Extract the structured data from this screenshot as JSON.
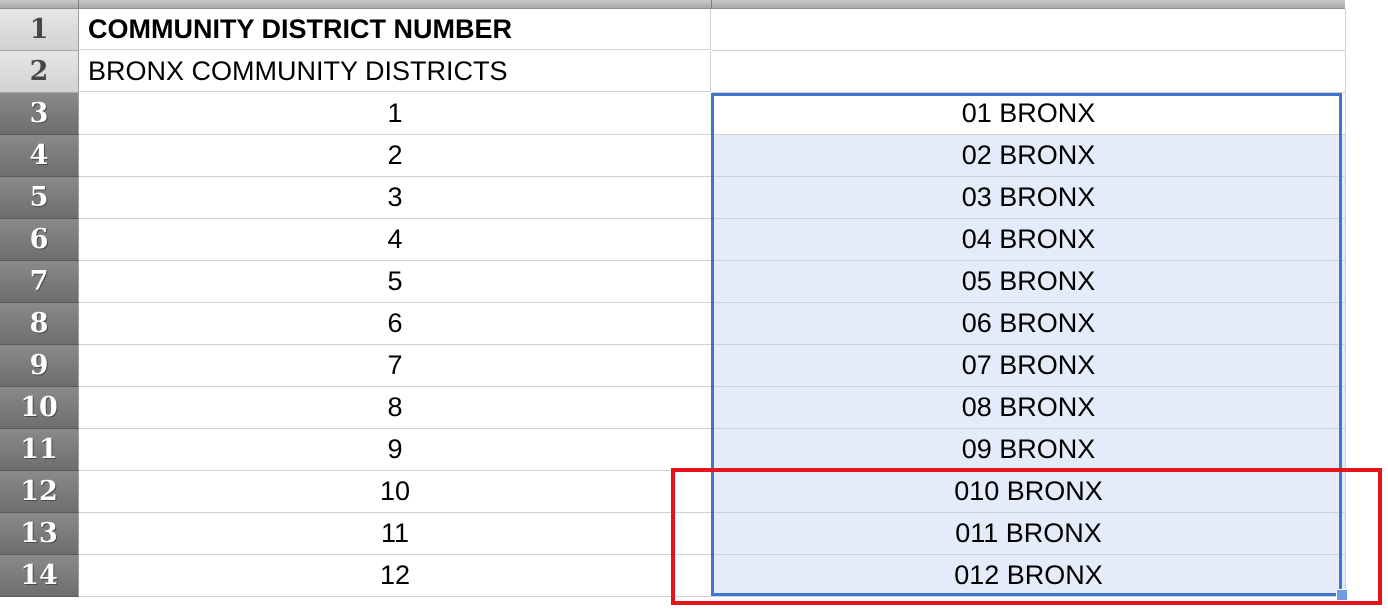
{
  "sheet": {
    "rows": [
      {
        "num": "1",
        "a": "COMMUNITY DISTRICT NUMBER",
        "b": "",
        "a_style": "bold-left",
        "row_selected": false,
        "b_state": "none"
      },
      {
        "num": "2",
        "a": "BRONX COMMUNITY DISTRICTS",
        "b": "",
        "a_style": "left",
        "row_selected": false,
        "b_state": "none"
      },
      {
        "num": "3",
        "a": "1",
        "b": "01 BRONX",
        "a_style": "center",
        "row_selected": true,
        "b_state": "active"
      },
      {
        "num": "4",
        "a": "2",
        "b": "02 BRONX",
        "a_style": "center",
        "row_selected": true,
        "b_state": "selected"
      },
      {
        "num": "5",
        "a": "3",
        "b": "03 BRONX",
        "a_style": "center",
        "row_selected": true,
        "b_state": "selected"
      },
      {
        "num": "6",
        "a": "4",
        "b": "04 BRONX",
        "a_style": "center",
        "row_selected": true,
        "b_state": "selected"
      },
      {
        "num": "7",
        "a": "5",
        "b": "05 BRONX",
        "a_style": "center",
        "row_selected": true,
        "b_state": "selected"
      },
      {
        "num": "8",
        "a": "6",
        "b": "06 BRONX",
        "a_style": "center",
        "row_selected": true,
        "b_state": "selected"
      },
      {
        "num": "9",
        "a": "7",
        "b": "07 BRONX",
        "a_style": "center",
        "row_selected": true,
        "b_state": "selected"
      },
      {
        "num": "10",
        "a": "8",
        "b": "08 BRONX",
        "a_style": "center",
        "row_selected": true,
        "b_state": "selected"
      },
      {
        "num": "11",
        "a": "9",
        "b": "09 BRONX",
        "a_style": "center",
        "row_selected": true,
        "b_state": "selected"
      },
      {
        "num": "12",
        "a": "10",
        "b": "010 BRONX",
        "a_style": "center",
        "row_selected": true,
        "b_state": "selected"
      },
      {
        "num": "13",
        "a": "11",
        "b": "011 BRONX",
        "a_style": "center",
        "row_selected": true,
        "b_state": "selected"
      },
      {
        "num": "14",
        "a": "12",
        "b": "012 BRONX",
        "a_style": "center",
        "row_selected": true,
        "b_state": "selected"
      }
    ]
  },
  "colors": {
    "selection_border": "#3f74cf",
    "selection_fill": "#e3ecf8",
    "annotation": "#e3151a"
  }
}
